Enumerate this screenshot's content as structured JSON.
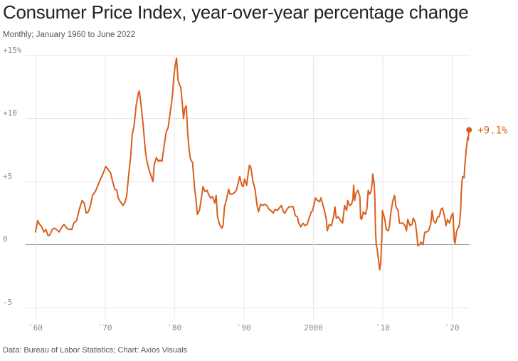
{
  "chart_data": {
    "type": "line",
    "title": "Consumer Price Index, year-over-year percentage change",
    "subtitle": "Monthly; January 1960 to June 2022",
    "source": "Data: Bureau of Labor Statistics; Chart: Axios Visuals",
    "y_ticks": [
      {
        "value": 15,
        "label": "+15%"
      },
      {
        "value": 10,
        "label": "+10"
      },
      {
        "value": 5,
        "label": "+5"
      },
      {
        "value": 0,
        "label": "0"
      },
      {
        "value": -5,
        "label": "-5"
      }
    ],
    "x_ticks": [
      {
        "value": 1960,
        "label": "`60"
      },
      {
        "value": 1970,
        "label": "`70"
      },
      {
        "value": 1980,
        "label": "`80"
      },
      {
        "value": 1990,
        "label": "`90"
      },
      {
        "value": 2000,
        "label": "2000"
      },
      {
        "value": 2010,
        "label": "`10"
      },
      {
        "value": 2020,
        "label": "`20"
      }
    ],
    "xlim": [
      1960,
      2022.5
    ],
    "ylim": [
      -5,
      15
    ],
    "grid": true,
    "line_color": "#d95f1e",
    "end_label": "+9.1%",
    "end_value": 9.1,
    "end_x": 2022.42,
    "series": [
      {
        "points": [
          [
            1960.0,
            1.0
          ],
          [
            1960.3,
            1.9
          ],
          [
            1960.6,
            1.6
          ],
          [
            1960.9,
            1.4
          ],
          [
            1961.2,
            1.0
          ],
          [
            1961.5,
            1.2
          ],
          [
            1961.8,
            0.7
          ],
          [
            1962.1,
            0.8
          ],
          [
            1962.4,
            1.2
          ],
          [
            1962.7,
            1.3
          ],
          [
            1963.0,
            1.2
          ],
          [
            1963.4,
            1.0
          ],
          [
            1963.8,
            1.4
          ],
          [
            1964.1,
            1.6
          ],
          [
            1964.5,
            1.3
          ],
          [
            1964.9,
            1.2
          ],
          [
            1965.2,
            1.2
          ],
          [
            1965.5,
            1.7
          ],
          [
            1965.9,
            1.9
          ],
          [
            1966.3,
            2.8
          ],
          [
            1966.7,
            3.5
          ],
          [
            1967.0,
            3.3
          ],
          [
            1967.3,
            2.5
          ],
          [
            1967.6,
            2.6
          ],
          [
            1967.9,
            3.1
          ],
          [
            1968.2,
            3.9
          ],
          [
            1968.6,
            4.2
          ],
          [
            1968.9,
            4.6
          ],
          [
            1969.2,
            5.0
          ],
          [
            1969.6,
            5.5
          ],
          [
            1969.9,
            5.9
          ],
          [
            1970.1,
            6.2
          ],
          [
            1970.4,
            6.0
          ],
          [
            1970.8,
            5.7
          ],
          [
            1971.1,
            5.0
          ],
          [
            1971.4,
            4.4
          ],
          [
            1971.7,
            4.3
          ],
          [
            1971.9,
            3.7
          ],
          [
            1972.2,
            3.4
          ],
          [
            1972.6,
            3.1
          ],
          [
            1972.9,
            3.4
          ],
          [
            1973.1,
            3.8
          ],
          [
            1973.4,
            5.5
          ],
          [
            1973.7,
            7.0
          ],
          [
            1973.9,
            8.7
          ],
          [
            1974.2,
            9.5
          ],
          [
            1974.5,
            11.1
          ],
          [
            1974.8,
            12.0
          ],
          [
            1974.95,
            12.2
          ],
          [
            1975.2,
            11.0
          ],
          [
            1975.5,
            9.4
          ],
          [
            1975.8,
            7.5
          ],
          [
            1976.0,
            6.7
          ],
          [
            1976.3,
            6.0
          ],
          [
            1976.6,
            5.5
          ],
          [
            1976.9,
            5.0
          ],
          [
            1977.1,
            6.4
          ],
          [
            1977.4,
            6.9
          ],
          [
            1977.7,
            6.6
          ],
          [
            1977.9,
            6.7
          ],
          [
            1978.2,
            6.6
          ],
          [
            1978.5,
            7.8
          ],
          [
            1978.8,
            8.9
          ],
          [
            1979.1,
            9.3
          ],
          [
            1979.4,
            10.5
          ],
          [
            1979.7,
            11.8
          ],
          [
            1979.9,
            13.3
          ],
          [
            1980.1,
            14.2
          ],
          [
            1980.3,
            14.8
          ],
          [
            1980.5,
            13.1
          ],
          [
            1980.7,
            12.7
          ],
          [
            1980.9,
            12.5
          ],
          [
            1981.1,
            11.4
          ],
          [
            1981.3,
            10.0
          ],
          [
            1981.5,
            10.8
          ],
          [
            1981.7,
            11.0
          ],
          [
            1981.9,
            8.9
          ],
          [
            1982.1,
            7.6
          ],
          [
            1982.3,
            6.8
          ],
          [
            1982.6,
            6.5
          ],
          [
            1982.9,
            4.5
          ],
          [
            1983.1,
            3.6
          ],
          [
            1983.3,
            2.4
          ],
          [
            1983.6,
            2.7
          ],
          [
            1983.9,
            3.8
          ],
          [
            1984.1,
            4.6
          ],
          [
            1984.4,
            4.2
          ],
          [
            1984.7,
            4.3
          ],
          [
            1984.9,
            4.0
          ],
          [
            1985.2,
            3.7
          ],
          [
            1985.5,
            3.8
          ],
          [
            1985.8,
            3.3
          ],
          [
            1986.0,
            3.9
          ],
          [
            1986.2,
            2.2
          ],
          [
            1986.5,
            1.6
          ],
          [
            1986.8,
            1.3
          ],
          [
            1987.0,
            1.5
          ],
          [
            1987.2,
            3.0
          ],
          [
            1987.5,
            3.6
          ],
          [
            1987.8,
            4.4
          ],
          [
            1988.0,
            4.0
          ],
          [
            1988.3,
            4.0
          ],
          [
            1988.6,
            4.1
          ],
          [
            1988.9,
            4.3
          ],
          [
            1989.1,
            4.7
          ],
          [
            1989.4,
            5.4
          ],
          [
            1989.7,
            4.7
          ],
          [
            1989.9,
            4.6
          ],
          [
            1990.1,
            5.2
          ],
          [
            1990.4,
            4.7
          ],
          [
            1990.6,
            5.6
          ],
          [
            1990.8,
            6.3
          ],
          [
            1991.0,
            6.1
          ],
          [
            1991.3,
            5.0
          ],
          [
            1991.6,
            4.4
          ],
          [
            1991.9,
            3.1
          ],
          [
            1992.1,
            2.6
          ],
          [
            1992.4,
            3.2
          ],
          [
            1992.7,
            3.1
          ],
          [
            1993.0,
            3.2
          ],
          [
            1993.3,
            3.1
          ],
          [
            1993.6,
            2.8
          ],
          [
            1993.9,
            2.7
          ],
          [
            1994.2,
            2.5
          ],
          [
            1994.5,
            2.8
          ],
          [
            1994.8,
            2.7
          ],
          [
            1995.1,
            2.9
          ],
          [
            1995.4,
            3.1
          ],
          [
            1995.7,
            2.6
          ],
          [
            1995.9,
            2.5
          ],
          [
            1996.2,
            2.8
          ],
          [
            1996.5,
            3.0
          ],
          [
            1996.8,
            3.0
          ],
          [
            1997.1,
            3.0
          ],
          [
            1997.4,
            2.3
          ],
          [
            1997.7,
            2.2
          ],
          [
            1997.9,
            1.7
          ],
          [
            1998.2,
            1.4
          ],
          [
            1998.5,
            1.7
          ],
          [
            1998.8,
            1.5
          ],
          [
            1999.1,
            1.6
          ],
          [
            1999.4,
            2.1
          ],
          [
            1999.7,
            2.6
          ],
          [
            1999.9,
            2.7
          ],
          [
            2000.1,
            3.2
          ],
          [
            2000.3,
            3.7
          ],
          [
            2000.6,
            3.5
          ],
          [
            2000.9,
            3.4
          ],
          [
            2001.1,
            3.7
          ],
          [
            2001.3,
            3.3
          ],
          [
            2001.6,
            2.7
          ],
          [
            2001.9,
            1.9
          ],
          [
            2002.0,
            1.1
          ],
          [
            2002.3,
            1.6
          ],
          [
            2002.6,
            1.5
          ],
          [
            2002.9,
            2.2
          ],
          [
            2003.1,
            3.0
          ],
          [
            2003.3,
            2.1
          ],
          [
            2003.6,
            2.2
          ],
          [
            2003.9,
            1.9
          ],
          [
            2004.2,
            1.7
          ],
          [
            2004.5,
            3.1
          ],
          [
            2004.8,
            2.7
          ],
          [
            2004.95,
            3.5
          ],
          [
            2005.2,
            3.1
          ],
          [
            2005.5,
            3.2
          ],
          [
            2005.7,
            3.6
          ],
          [
            2005.8,
            4.7
          ],
          [
            2005.95,
            3.5
          ],
          [
            2006.1,
            4.0
          ],
          [
            2006.4,
            4.3
          ],
          [
            2006.7,
            3.8
          ],
          [
            2006.8,
            2.1
          ],
          [
            2006.95,
            2.0
          ],
          [
            2007.2,
            2.6
          ],
          [
            2007.5,
            2.4
          ],
          [
            2007.7,
            2.8
          ],
          [
            2007.9,
            4.3
          ],
          [
            2008.1,
            4.0
          ],
          [
            2008.3,
            4.2
          ],
          [
            2008.5,
            5.0
          ],
          [
            2008.55,
            5.6
          ],
          [
            2008.75,
            4.9
          ],
          [
            2008.85,
            3.7
          ],
          [
            2008.95,
            1.1
          ],
          [
            2009.05,
            0.0
          ],
          [
            2009.2,
            -0.4
          ],
          [
            2009.4,
            -1.3
          ],
          [
            2009.55,
            -2.0
          ],
          [
            2009.7,
            -1.4
          ],
          [
            2009.85,
            0.5
          ],
          [
            2009.95,
            2.7
          ],
          [
            2010.1,
            2.4
          ],
          [
            2010.3,
            2.0
          ],
          [
            2010.5,
            1.2
          ],
          [
            2010.8,
            1.1
          ],
          [
            2010.95,
            1.5
          ],
          [
            2011.2,
            2.7
          ],
          [
            2011.5,
            3.6
          ],
          [
            2011.7,
            3.9
          ],
          [
            2011.9,
            3.0
          ],
          [
            2012.2,
            2.7
          ],
          [
            2012.4,
            1.7
          ],
          [
            2012.7,
            1.7
          ],
          [
            2012.9,
            1.7
          ],
          [
            2013.2,
            1.5
          ],
          [
            2013.4,
            1.1
          ],
          [
            2013.6,
            2.0
          ],
          [
            2013.9,
            1.5
          ],
          [
            2014.2,
            1.6
          ],
          [
            2014.4,
            2.1
          ],
          [
            2014.7,
            1.7
          ],
          [
            2014.9,
            0.8
          ],
          [
            2015.05,
            -0.1
          ],
          [
            2015.3,
            0.0
          ],
          [
            2015.5,
            0.2
          ],
          [
            2015.8,
            0.0
          ],
          [
            2015.95,
            0.7
          ],
          [
            2016.1,
            1.0
          ],
          [
            2016.3,
            1.0
          ],
          [
            2016.6,
            1.1
          ],
          [
            2016.9,
            1.6
          ],
          [
            2017.1,
            2.7
          ],
          [
            2017.3,
            1.9
          ],
          [
            2017.6,
            1.7
          ],
          [
            2017.9,
            2.2
          ],
          [
            2018.1,
            2.2
          ],
          [
            2018.4,
            2.8
          ],
          [
            2018.6,
            2.9
          ],
          [
            2018.9,
            2.2
          ],
          [
            2019.1,
            1.5
          ],
          [
            2019.3,
            2.0
          ],
          [
            2019.6,
            1.7
          ],
          [
            2019.9,
            2.3
          ],
          [
            2020.1,
            2.5
          ],
          [
            2020.3,
            0.3
          ],
          [
            2020.4,
            0.1
          ],
          [
            2020.6,
            1.0
          ],
          [
            2020.8,
            1.3
          ],
          [
            2020.95,
            1.4
          ],
          [
            2021.05,
            1.7
          ],
          [
            2021.2,
            2.6
          ],
          [
            2021.3,
            4.2
          ],
          [
            2021.4,
            5.0
          ],
          [
            2021.5,
            5.4
          ],
          [
            2021.7,
            5.3
          ],
          [
            2021.8,
            6.2
          ],
          [
            2021.9,
            6.8
          ],
          [
            2022.0,
            7.5
          ],
          [
            2022.1,
            7.9
          ],
          [
            2022.2,
            8.5
          ],
          [
            2022.3,
            8.3
          ],
          [
            2022.42,
            9.1
          ]
        ]
      }
    ]
  }
}
